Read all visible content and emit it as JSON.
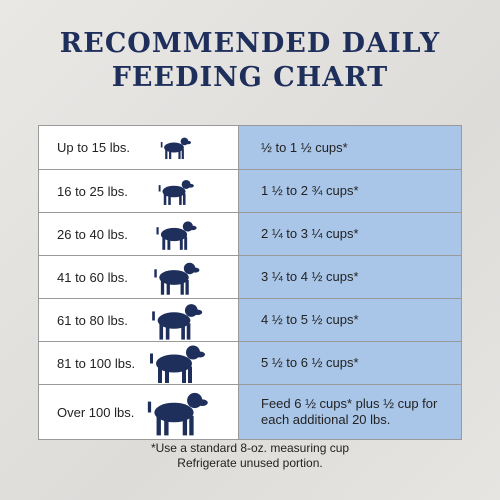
{
  "header": {
    "title_lines": [
      "RECOMMENDED DAILY",
      "FEEDING CHART"
    ]
  },
  "table": {
    "rows": [
      [
        "Up to 15 lbs.",
        "½ to 1 ½ cups*"
      ],
      [
        "16 to 25 lbs.",
        "1 ½ to 2 ¾ cups*"
      ],
      [
        "26 to 40 lbs.",
        "2 ¼ to 3 ¼ cups*"
      ],
      [
        "41 to 60 lbs.",
        "3 ¼ to 4 ½ cups*"
      ],
      [
        "61 to 80 lbs.",
        "4 ½ to 5 ½ cups*"
      ],
      [
        "81 to 100 lbs.",
        "5 ½ to 6 ½ cups*"
      ],
      [
        "Over 100 lbs.",
        "Feed 6 ½ cups* plus ½ cup for each additional 20 lbs."
      ]
    ]
  },
  "footnotes": [
    "*Use a standard 8-oz. measuring cup",
    "Refrigerate unused portion."
  ]
}
